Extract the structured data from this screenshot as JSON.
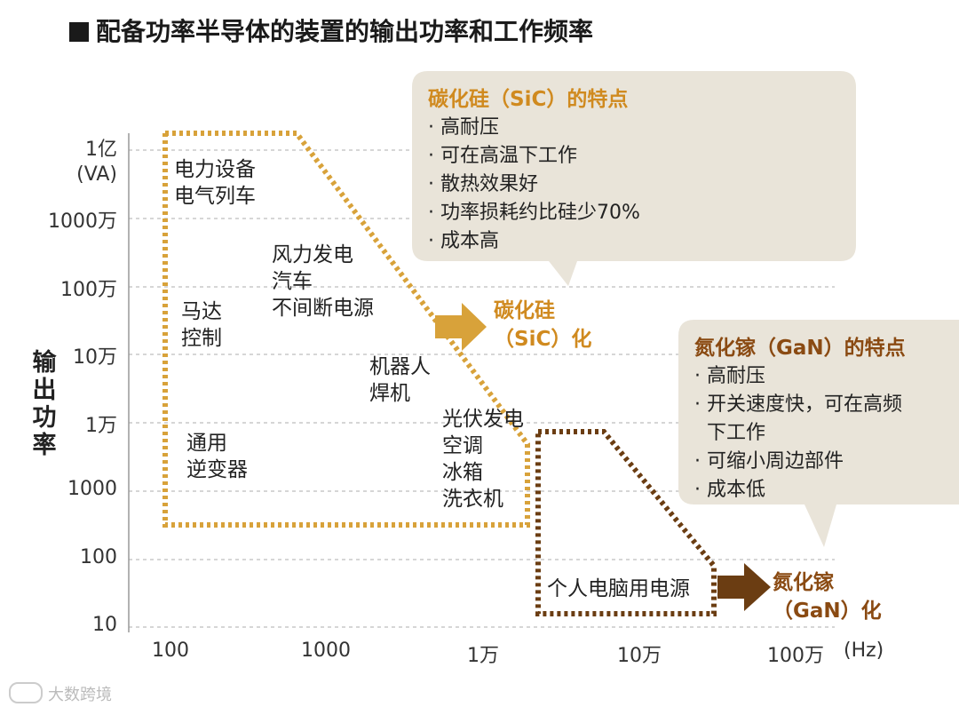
{
  "title": "配备功率半导体的装置的输出功率和工作频率",
  "y_axis": {
    "label": "输出功率",
    "unit": "(VA)",
    "ticks": [
      "1亿",
      "1000万",
      "100万",
      "10万",
      "1万",
      "1000",
      "100",
      "10"
    ]
  },
  "x_axis": {
    "unit": "(Hz)",
    "ticks": [
      "100",
      "1000",
      "1万",
      "10万",
      "100万"
    ]
  },
  "applications": {
    "power_equipment": [
      "电力设备",
      "电气列车"
    ],
    "wind_power": [
      "风力发电",
      "汽车",
      "不间断电源"
    ],
    "motor_control": [
      "马达",
      "控制"
    ],
    "robot": [
      "机器人",
      "焊机"
    ],
    "inverter": [
      "通用",
      "逆变器"
    ],
    "solar": [
      "光伏发电",
      "空调",
      "冰箱",
      "洗衣机"
    ],
    "pc_power": "个人电脑用电源"
  },
  "sic_callout": {
    "title": "碳化硅（SiC）的特点",
    "items": [
      "· 高耐压",
      "· 可在高温下工作",
      "· 散热效果好",
      "· 功率损耗约比硅少70%",
      "· 成本高"
    ]
  },
  "gan_callout": {
    "title": "氮化镓（GaN）的特点",
    "items": [
      "· 高耐压",
      "· 开关速度快，可在高频",
      "  下工作",
      "· 可缩小周边部件",
      "· 成本低"
    ]
  },
  "sic_trend": [
    "碳化硅",
    "（SiC）化"
  ],
  "gan_trend": [
    "氮化镓",
    "（GaN）化"
  ],
  "watermark": "大数跨境",
  "colors": {
    "sic": "#d8a23a",
    "sic_text": "#d08a1f",
    "gan": "#6b3d12",
    "gan_text": "#8a4a12",
    "callout_bg": "#e9e4d9",
    "grid": "#c8c8c8"
  }
}
